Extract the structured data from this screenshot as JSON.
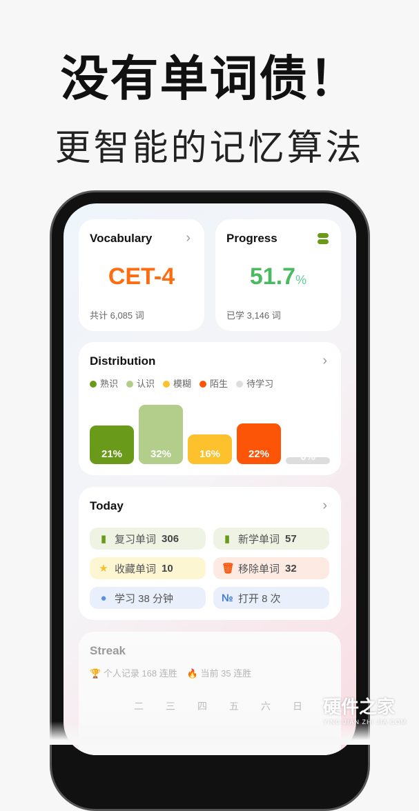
{
  "headline": "没有单词债！",
  "subheadline": "更智能的记忆算法",
  "vocabulary": {
    "title": "Vocabulary",
    "level": "CET-4",
    "total": "共计 6,085 词"
  },
  "progress": {
    "title": "Progress",
    "value": "51.7",
    "unit": "%",
    "learned": "已学 3,146 词"
  },
  "distribution": {
    "title": "Distribution",
    "chart_data": {
      "type": "bar",
      "categories": [
        "熟识",
        "认识",
        "模糊",
        "陌生",
        "待学习"
      ],
      "values": [
        21,
        32,
        16,
        22,
        0
      ],
      "labels": [
        "21%",
        "32%",
        "16%",
        "22%",
        "0%"
      ],
      "colors": [
        "#6a9a1a",
        "#b3cd8b",
        "#fcc12c",
        "#fd5508",
        "#dddddd"
      ],
      "legend": "top-left"
    }
  },
  "today": {
    "title": "Today",
    "items": [
      {
        "icon": "book-icon",
        "label": "复习单词",
        "value": "306",
        "bg": "#eef3e4",
        "color": "#6a9a1a"
      },
      {
        "icon": "book-icon",
        "label": "新学单词",
        "value": "57",
        "bg": "#eef3e4",
        "color": "#6a9a1a"
      },
      {
        "icon": "star-icon",
        "label": "收藏单词",
        "value": "10",
        "bg": "#fdf6d3",
        "color": "#f7c02b"
      },
      {
        "icon": "trash-icon",
        "label": "移除单词",
        "value": "32",
        "bg": "#fdeae2",
        "color": "#fd5508"
      },
      {
        "icon": "clock-icon",
        "label": "学习 38 分钟",
        "value": "",
        "bg": "#e9f0fb",
        "color": "#5b8fe6"
      },
      {
        "icon": "number-icon",
        "label": "打开 8 次",
        "value": "",
        "bg": "#e9f0fb",
        "color": "#3d7be0"
      }
    ]
  },
  "streak": {
    "title": "Streak",
    "record": "个人记录 168 连胜",
    "current": "当前 35 连胜",
    "days": [
      "二",
      "三",
      "四",
      "五",
      "六",
      "日"
    ]
  },
  "watermark": {
    "name": "硬件之家",
    "url": "YING JIAN ZHI JIA.COM"
  }
}
